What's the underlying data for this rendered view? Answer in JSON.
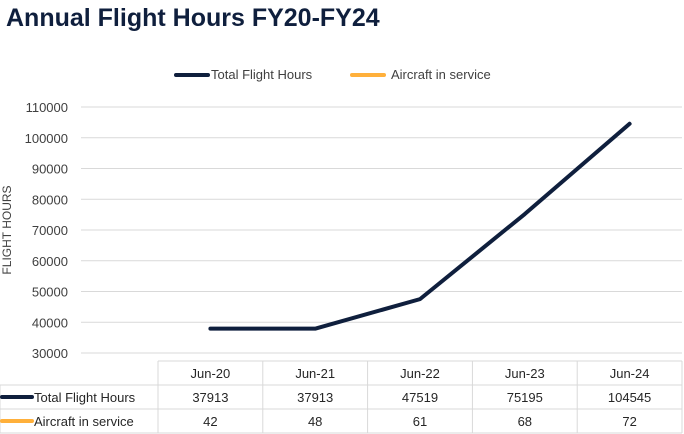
{
  "chart_data": {
    "type": "line",
    "title": "Annual Flight Hours FY20-FY24",
    "ylabel": "FLIGHT HOURS",
    "ylim": [
      30000,
      110000
    ],
    "yticks": [
      110000,
      100000,
      90000,
      80000,
      70000,
      60000,
      50000,
      40000,
      30000
    ],
    "categories": [
      "Jun-20",
      "Jun-21",
      "Jun-22",
      "Jun-23",
      "Jun-24"
    ],
    "grid": true,
    "legend_position": "top",
    "series": [
      {
        "name": "Total Flight Hours",
        "color": "#0f1f3d",
        "values": [
          37913,
          37913,
          47519,
          75195,
          104545
        ]
      },
      {
        "name": "Aircraft in service",
        "color": "#ffb03b",
        "values": [
          42,
          48,
          61,
          68,
          72
        ]
      }
    ]
  }
}
